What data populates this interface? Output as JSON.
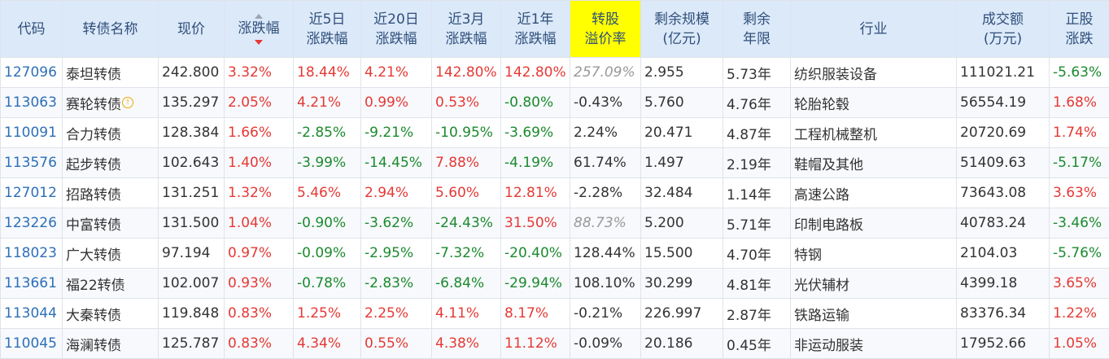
{
  "headers": {
    "code": "代码",
    "name": "转债名称",
    "price": "现价",
    "change": "涨跌幅",
    "change_5d_l1": "近5日",
    "change_5d_l2": "涨跌幅",
    "change_20d_l1": "近20日",
    "change_20d_l2": "涨跌幅",
    "change_3m_l1": "近3月",
    "change_3m_l2": "涨跌幅",
    "change_1y_l1": "近1年",
    "change_1y_l2": "涨跌幅",
    "premium_l1": "转股",
    "premium_l2": "溢价率",
    "scale_l1": "剩余规模",
    "scale_l2": "(亿元)",
    "years_l1": "剩余",
    "years_l2": "年限",
    "industry": "行业",
    "volume_l1": "成交额",
    "volume_l2": "(万元)",
    "stock_l1": "正股",
    "stock_l2": "涨跌"
  },
  "rows": [
    {
      "code": "127096",
      "name": "泰坦转债",
      "price": "242.800",
      "change": "3.32%",
      "c5d": "18.44%",
      "c20d": "4.21%",
      "c3m": "142.80%",
      "c1y": "142.80%",
      "premium": "257.09%",
      "scale": "2.955",
      "years": "5.73年",
      "industry": "纺织服装设备",
      "volume": "111021.21",
      "stock": "-5.63%"
    },
    {
      "code": "113063",
      "name": "赛轮转债",
      "price": "135.297",
      "change": "2.05%",
      "c5d": "4.21%",
      "c20d": "0.99%",
      "c3m": "0.53%",
      "c1y": "-0.80%",
      "premium": "-0.43%",
      "scale": "5.760",
      "years": "4.76年",
      "industry": "轮胎轮毂",
      "volume": "56554.19",
      "stock": "1.68%"
    },
    {
      "code": "110091",
      "name": "合力转债",
      "price": "128.384",
      "change": "1.66%",
      "c5d": "-2.85%",
      "c20d": "-9.21%",
      "c3m": "-10.95%",
      "c1y": "-3.69%",
      "premium": "2.24%",
      "scale": "20.471",
      "years": "4.87年",
      "industry": "工程机械整机",
      "volume": "20720.69",
      "stock": "1.74%"
    },
    {
      "code": "113576",
      "name": "起步转债",
      "price": "102.643",
      "change": "1.40%",
      "c5d": "-3.99%",
      "c20d": "-14.45%",
      "c3m": "7.88%",
      "c1y": "-4.19%",
      "premium": "61.74%",
      "scale": "1.497",
      "years": "2.19年",
      "industry": "鞋帽及其他",
      "volume": "51409.63",
      "stock": "-5.17%"
    },
    {
      "code": "127012",
      "name": "招路转债",
      "price": "131.251",
      "change": "1.32%",
      "c5d": "5.46%",
      "c20d": "2.94%",
      "c3m": "5.60%",
      "c1y": "12.81%",
      "premium": "-2.28%",
      "scale": "32.484",
      "years": "1.14年",
      "industry": "高速公路",
      "volume": "73643.08",
      "stock": "3.63%"
    },
    {
      "code": "123226",
      "name": "中富转债",
      "price": "131.500",
      "change": "1.04%",
      "c5d": "-0.90%",
      "c20d": "-3.62%",
      "c3m": "-24.43%",
      "c1y": "31.50%",
      "premium": "88.73%",
      "scale": "5.200",
      "years": "5.71年",
      "industry": "印制电路板",
      "volume": "40783.24",
      "stock": "-3.46%"
    },
    {
      "code": "118023",
      "name": "广大转债",
      "price": "97.194",
      "change": "0.97%",
      "c5d": "-0.09%",
      "c20d": "-2.95%",
      "c3m": "-7.32%",
      "c1y": "-20.40%",
      "premium": "128.44%",
      "scale": "15.500",
      "years": "4.70年",
      "industry": "特钢",
      "volume": "2104.03",
      "stock": "-5.76%"
    },
    {
      "code": "113661",
      "name": "福22转债",
      "price": "102.007",
      "change": "0.93%",
      "c5d": "-0.78%",
      "c20d": "-2.83%",
      "c3m": "-6.84%",
      "c1y": "-29.94%",
      "premium": "108.10%",
      "scale": "30.299",
      "years": "4.81年",
      "industry": "光伏辅材",
      "volume": "4399.18",
      "stock": "3.65%"
    },
    {
      "code": "113044",
      "name": "大秦转债",
      "price": "119.848",
      "change": "0.83%",
      "c5d": "1.25%",
      "c20d": "2.25%",
      "c3m": "4.11%",
      "c1y": "8.17%",
      "premium": "-0.21%",
      "scale": "226.997",
      "years": "2.87年",
      "industry": "铁路运输",
      "volume": "83376.34",
      "stock": "1.22%"
    },
    {
      "code": "110045",
      "name": "海澜转债",
      "price": "125.787",
      "change": "0.83%",
      "c5d": "4.34%",
      "c20d": "0.55%",
      "c3m": "4.38%",
      "c1y": "11.12%",
      "premium": "-0.09%",
      "scale": "20.186",
      "years": "0.45年",
      "industry": "非运动服装",
      "volume": "17952.66",
      "stock": "1.05%"
    }
  ],
  "colors": {
    "up": "#e53935",
    "down": "#1b8a2e",
    "code": "#2d6fb8",
    "header_bg": "#dce9f9",
    "highlight": "#ffff00"
  },
  "icons": {
    "sort_indicator": "sort-desc-icon",
    "info": "info-circle-icon"
  }
}
